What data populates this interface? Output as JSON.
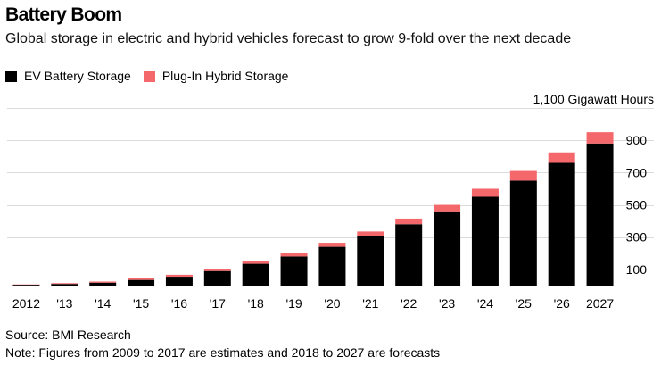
{
  "header": {
    "title": "Battery Boom",
    "subtitle": "Global storage in electric and hybrid vehicles forecast to grow 9-fold over the next decade"
  },
  "legend": {
    "items": [
      {
        "label": "EV Battery Storage",
        "color": "#000000"
      },
      {
        "label": "Plug-In Hybrid Storage",
        "color": "#f4676a"
      }
    ]
  },
  "footer": {
    "source": "Source: BMI Research",
    "note": "Note: Figures from 2009 to 2017 are estimates and 2018 to 2027 are forecasts"
  },
  "chart_data": {
    "type": "bar",
    "stacked": true,
    "categories": [
      "2012",
      "'13",
      "'14",
      "'15",
      "'16",
      "'17",
      "'18",
      "'19",
      "'20",
      "'21",
      "'22",
      "'23",
      "'24",
      "'25",
      "'26",
      "2027"
    ],
    "series": [
      {
        "name": "EV Battery Storage",
        "color": "#000000",
        "values": [
          5,
          10,
          18,
          35,
          55,
          90,
          135,
          180,
          240,
          305,
          380,
          460,
          550,
          650,
          760,
          880
        ]
      },
      {
        "name": "Plug-In Hybrid Storage",
        "color": "#f4676a",
        "values": [
          2,
          5,
          7,
          10,
          12,
          15,
          15,
          20,
          25,
          30,
          35,
          40,
          50,
          60,
          65,
          70
        ]
      }
    ],
    "y_axis": {
      "ticks": [
        100,
        300,
        500,
        700,
        900
      ],
      "top_label": "1,100 Gigawatt Hours",
      "range": [
        0,
        1100
      ],
      "position": "right"
    },
    "grid": true
  }
}
